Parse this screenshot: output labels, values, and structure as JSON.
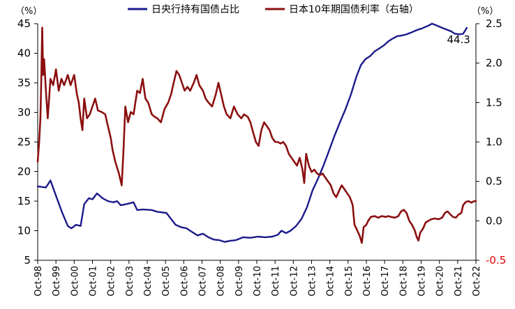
{
  "chart_data": {
    "type": "line",
    "legend_position": "top",
    "grid": false,
    "left_axis": {
      "unit_label": "（%）",
      "ylim": [
        5,
        45
      ],
      "ticks": [
        5,
        10,
        15,
        20,
        25,
        30,
        35,
        40,
        45
      ]
    },
    "right_axis": {
      "unit_label": "（%）",
      "ylim": [
        -0.5,
        2.5
      ],
      "ticks": [
        -0.5,
        0.0,
        0.5,
        1.0,
        1.5,
        2.0,
        2.5
      ],
      "tick_labels": [
        "-0.5",
        "0.0",
        "0.5",
        "1.0",
        "1.5",
        "2.0",
        "2.5"
      ],
      "negative_tick_color": "#e00000"
    },
    "x_axis": {
      "range": [
        1998.75,
        2022.75
      ],
      "tick_labels": [
        "Oct-98",
        "Oct-99",
        "Oct-00",
        "Oct-01",
        "Oct-02",
        "Oct-03",
        "Oct-04",
        "Oct-05",
        "Oct-06",
        "Oct-07",
        "Oct-08",
        "Oct-09",
        "Oct-10",
        "Oct-11",
        "Oct-12",
        "Oct-13",
        "Oct-14",
        "Oct-15",
        "Oct-16",
        "Oct-17",
        "Oct-18",
        "Oct-19",
        "Oct-20",
        "Oct-21",
        "Oct-22"
      ]
    },
    "annotation": {
      "text": "44.3",
      "series": 0,
      "x": 2021.8,
      "y": 44.3
    },
    "series": [
      {
        "name": "日央行持有国债占比",
        "axis": "left",
        "color": "#1a1a8c",
        "points": [
          [
            1998.75,
            17.5
          ],
          [
            1999.2,
            17.3
          ],
          [
            1999.45,
            18.5
          ],
          [
            1999.8,
            15.5
          ],
          [
            2000.1,
            13.0
          ],
          [
            2000.4,
            10.8
          ],
          [
            2000.6,
            10.4
          ],
          [
            2000.85,
            11.0
          ],
          [
            2001.1,
            10.8
          ],
          [
            2001.3,
            14.5
          ],
          [
            2001.55,
            15.5
          ],
          [
            2001.75,
            15.3
          ],
          [
            2002.0,
            16.3
          ],
          [
            2002.3,
            15.5
          ],
          [
            2002.6,
            15.0
          ],
          [
            2002.9,
            14.8
          ],
          [
            2003.1,
            15.0
          ],
          [
            2003.3,
            14.3
          ],
          [
            2003.6,
            14.5
          ],
          [
            2004.0,
            14.8
          ],
          [
            2004.2,
            13.5
          ],
          [
            2004.5,
            13.6
          ],
          [
            2005.0,
            13.5
          ],
          [
            2005.3,
            13.2
          ],
          [
            2005.8,
            13.0
          ],
          [
            2006.3,
            11.0
          ],
          [
            2006.6,
            10.6
          ],
          [
            2006.9,
            10.4
          ],
          [
            2007.2,
            9.8
          ],
          [
            2007.5,
            9.2
          ],
          [
            2007.8,
            9.5
          ],
          [
            2008.1,
            8.9
          ],
          [
            2008.4,
            8.5
          ],
          [
            2008.7,
            8.4
          ],
          [
            2009.0,
            8.1
          ],
          [
            2009.3,
            8.3
          ],
          [
            2009.6,
            8.4
          ],
          [
            2010.0,
            8.9
          ],
          [
            2010.4,
            8.8
          ],
          [
            2010.8,
            9.0
          ],
          [
            2011.2,
            8.9
          ],
          [
            2011.6,
            9.0
          ],
          [
            2011.9,
            9.3
          ],
          [
            2012.1,
            10.0
          ],
          [
            2012.35,
            9.6
          ],
          [
            2012.6,
            10.0
          ],
          [
            2012.9,
            10.8
          ],
          [
            2013.2,
            12.0
          ],
          [
            2013.5,
            14.0
          ],
          [
            2013.8,
            16.8
          ],
          [
            2014.1,
            18.8
          ],
          [
            2014.4,
            21.0
          ],
          [
            2014.7,
            23.5
          ],
          [
            2015.0,
            26.0
          ],
          [
            2015.3,
            28.3
          ],
          [
            2015.6,
            30.5
          ],
          [
            2015.9,
            33.0
          ],
          [
            2016.2,
            36.0
          ],
          [
            2016.45,
            38.0
          ],
          [
            2016.7,
            39.0
          ],
          [
            2016.95,
            39.5
          ],
          [
            2017.2,
            40.3
          ],
          [
            2017.45,
            40.8
          ],
          [
            2017.7,
            41.3
          ],
          [
            2017.95,
            42.0
          ],
          [
            2018.2,
            42.5
          ],
          [
            2018.45,
            42.9
          ],
          [
            2018.7,
            43.0
          ],
          [
            2018.95,
            43.2
          ],
          [
            2019.2,
            43.5
          ],
          [
            2019.5,
            43.9
          ],
          [
            2019.8,
            44.2
          ],
          [
            2020.1,
            44.6
          ],
          [
            2020.35,
            45.0
          ],
          [
            2020.6,
            44.7
          ],
          [
            2020.9,
            44.3
          ],
          [
            2021.15,
            44.0
          ],
          [
            2021.4,
            43.7
          ],
          [
            2021.6,
            43.3
          ],
          [
            2021.85,
            43.2
          ],
          [
            2022.05,
            43.3
          ],
          [
            2022.25,
            44.3
          ]
        ]
      },
      {
        "name": "日本10年期国债利率（右轴）",
        "axis": "right",
        "color": "#8b0f0f",
        "points": [
          [
            1998.75,
            0.75
          ],
          [
            1998.83,
            1.0
          ],
          [
            1998.9,
            1.3
          ],
          [
            1998.95,
            1.8
          ],
          [
            1999.0,
            2.45
          ],
          [
            1999.05,
            1.85
          ],
          [
            1999.1,
            2.05
          ],
          [
            1999.2,
            1.65
          ],
          [
            1999.3,
            1.3
          ],
          [
            1999.45,
            1.8
          ],
          [
            1999.6,
            1.72
          ],
          [
            1999.75,
            1.92
          ],
          [
            1999.9,
            1.65
          ],
          [
            2000.05,
            1.8
          ],
          [
            2000.2,
            1.72
          ],
          [
            2000.4,
            1.85
          ],
          [
            2000.55,
            1.72
          ],
          [
            2000.75,
            1.85
          ],
          [
            2000.9,
            1.6
          ],
          [
            2001.0,
            1.5
          ],
          [
            2001.1,
            1.3
          ],
          [
            2001.2,
            1.15
          ],
          [
            2001.3,
            1.55
          ],
          [
            2001.45,
            1.3
          ],
          [
            2001.6,
            1.35
          ],
          [
            2001.75,
            1.45
          ],
          [
            2001.9,
            1.55
          ],
          [
            2002.05,
            1.4
          ],
          [
            2002.25,
            1.38
          ],
          [
            2002.45,
            1.35
          ],
          [
            2002.6,
            1.2
          ],
          [
            2002.75,
            1.05
          ],
          [
            2002.85,
            0.9
          ],
          [
            2003.0,
            0.75
          ],
          [
            2003.2,
            0.6
          ],
          [
            2003.35,
            0.45
          ],
          [
            2003.45,
            0.9
          ],
          [
            2003.55,
            1.45
          ],
          [
            2003.7,
            1.25
          ],
          [
            2003.85,
            1.38
          ],
          [
            2004.0,
            1.35
          ],
          [
            2004.2,
            1.65
          ],
          [
            2004.35,
            1.62
          ],
          [
            2004.5,
            1.8
          ],
          [
            2004.65,
            1.55
          ],
          [
            2004.8,
            1.5
          ],
          [
            2005.0,
            1.35
          ],
          [
            2005.15,
            1.32
          ],
          [
            2005.3,
            1.3
          ],
          [
            2005.5,
            1.25
          ],
          [
            2005.7,
            1.42
          ],
          [
            2005.9,
            1.5
          ],
          [
            2006.05,
            1.6
          ],
          [
            2006.2,
            1.75
          ],
          [
            2006.35,
            1.9
          ],
          [
            2006.5,
            1.85
          ],
          [
            2006.65,
            1.75
          ],
          [
            2006.8,
            1.65
          ],
          [
            2006.95,
            1.7
          ],
          [
            2007.1,
            1.65
          ],
          [
            2007.3,
            1.75
          ],
          [
            2007.45,
            1.85
          ],
          [
            2007.6,
            1.72
          ],
          [
            2007.8,
            1.65
          ],
          [
            2007.95,
            1.55
          ],
          [
            2008.1,
            1.5
          ],
          [
            2008.3,
            1.45
          ],
          [
            2008.5,
            1.6
          ],
          [
            2008.65,
            1.75
          ],
          [
            2008.8,
            1.6
          ],
          [
            2008.95,
            1.45
          ],
          [
            2009.1,
            1.35
          ],
          [
            2009.3,
            1.3
          ],
          [
            2009.5,
            1.45
          ],
          [
            2009.7,
            1.35
          ],
          [
            2009.9,
            1.3
          ],
          [
            2010.05,
            1.35
          ],
          [
            2010.25,
            1.32
          ],
          [
            2010.4,
            1.25
          ],
          [
            2010.55,
            1.12
          ],
          [
            2010.7,
            1.0
          ],
          [
            2010.85,
            0.95
          ],
          [
            2011.0,
            1.15
          ],
          [
            2011.15,
            1.25
          ],
          [
            2011.3,
            1.2
          ],
          [
            2011.45,
            1.15
          ],
          [
            2011.6,
            1.05
          ],
          [
            2011.75,
            1.0
          ],
          [
            2011.9,
            1.0
          ],
          [
            2012.05,
            0.98
          ],
          [
            2012.2,
            1.0
          ],
          [
            2012.35,
            0.95
          ],
          [
            2012.5,
            0.85
          ],
          [
            2012.65,
            0.8
          ],
          [
            2012.8,
            0.75
          ],
          [
            2012.95,
            0.7
          ],
          [
            2013.1,
            0.8
          ],
          [
            2013.25,
            0.65
          ],
          [
            2013.35,
            0.48
          ],
          [
            2013.45,
            0.85
          ],
          [
            2013.6,
            0.7
          ],
          [
            2013.75,
            0.62
          ],
          [
            2013.9,
            0.65
          ],
          [
            2014.05,
            0.6
          ],
          [
            2014.2,
            0.58
          ],
          [
            2014.35,
            0.6
          ],
          [
            2014.5,
            0.55
          ],
          [
            2014.65,
            0.5
          ],
          [
            2014.8,
            0.45
          ],
          [
            2014.95,
            0.35
          ],
          [
            2015.1,
            0.3
          ],
          [
            2015.25,
            0.38
          ],
          [
            2015.4,
            0.45
          ],
          [
            2015.55,
            0.4
          ],
          [
            2015.7,
            0.35
          ],
          [
            2015.85,
            0.3
          ],
          [
            2016.0,
            0.2
          ],
          [
            2016.1,
            -0.05
          ],
          [
            2016.25,
            -0.12
          ],
          [
            2016.4,
            -0.2
          ],
          [
            2016.5,
            -0.28
          ],
          [
            2016.6,
            -0.08
          ],
          [
            2016.75,
            -0.05
          ],
          [
            2016.85,
            0.0
          ],
          [
            2017.0,
            0.05
          ],
          [
            2017.2,
            0.06
          ],
          [
            2017.4,
            0.04
          ],
          [
            2017.6,
            0.06
          ],
          [
            2017.8,
            0.05
          ],
          [
            2017.95,
            0.06
          ],
          [
            2018.1,
            0.05
          ],
          [
            2018.3,
            0.04
          ],
          [
            2018.5,
            0.06
          ],
          [
            2018.65,
            0.12
          ],
          [
            2018.8,
            0.14
          ],
          [
            2018.95,
            0.1
          ],
          [
            2019.1,
            0.0
          ],
          [
            2019.25,
            -0.05
          ],
          [
            2019.4,
            -0.12
          ],
          [
            2019.5,
            -0.2
          ],
          [
            2019.6,
            -0.25
          ],
          [
            2019.7,
            -0.15
          ],
          [
            2019.85,
            -0.1
          ],
          [
            2020.0,
            -0.02
          ],
          [
            2020.15,
            0.0
          ],
          [
            2020.3,
            0.02
          ],
          [
            2020.5,
            0.03
          ],
          [
            2020.7,
            0.02
          ],
          [
            2020.9,
            0.04
          ],
          [
            2021.05,
            0.1
          ],
          [
            2021.2,
            0.12
          ],
          [
            2021.35,
            0.08
          ],
          [
            2021.5,
            0.05
          ],
          [
            2021.65,
            0.04
          ],
          [
            2021.8,
            0.08
          ],
          [
            2021.95,
            0.1
          ],
          [
            2022.05,
            0.2
          ],
          [
            2022.2,
            0.24
          ],
          [
            2022.35,
            0.25
          ],
          [
            2022.5,
            0.23
          ],
          [
            2022.65,
            0.25
          ],
          [
            2022.75,
            0.25
          ]
        ]
      }
    ]
  }
}
